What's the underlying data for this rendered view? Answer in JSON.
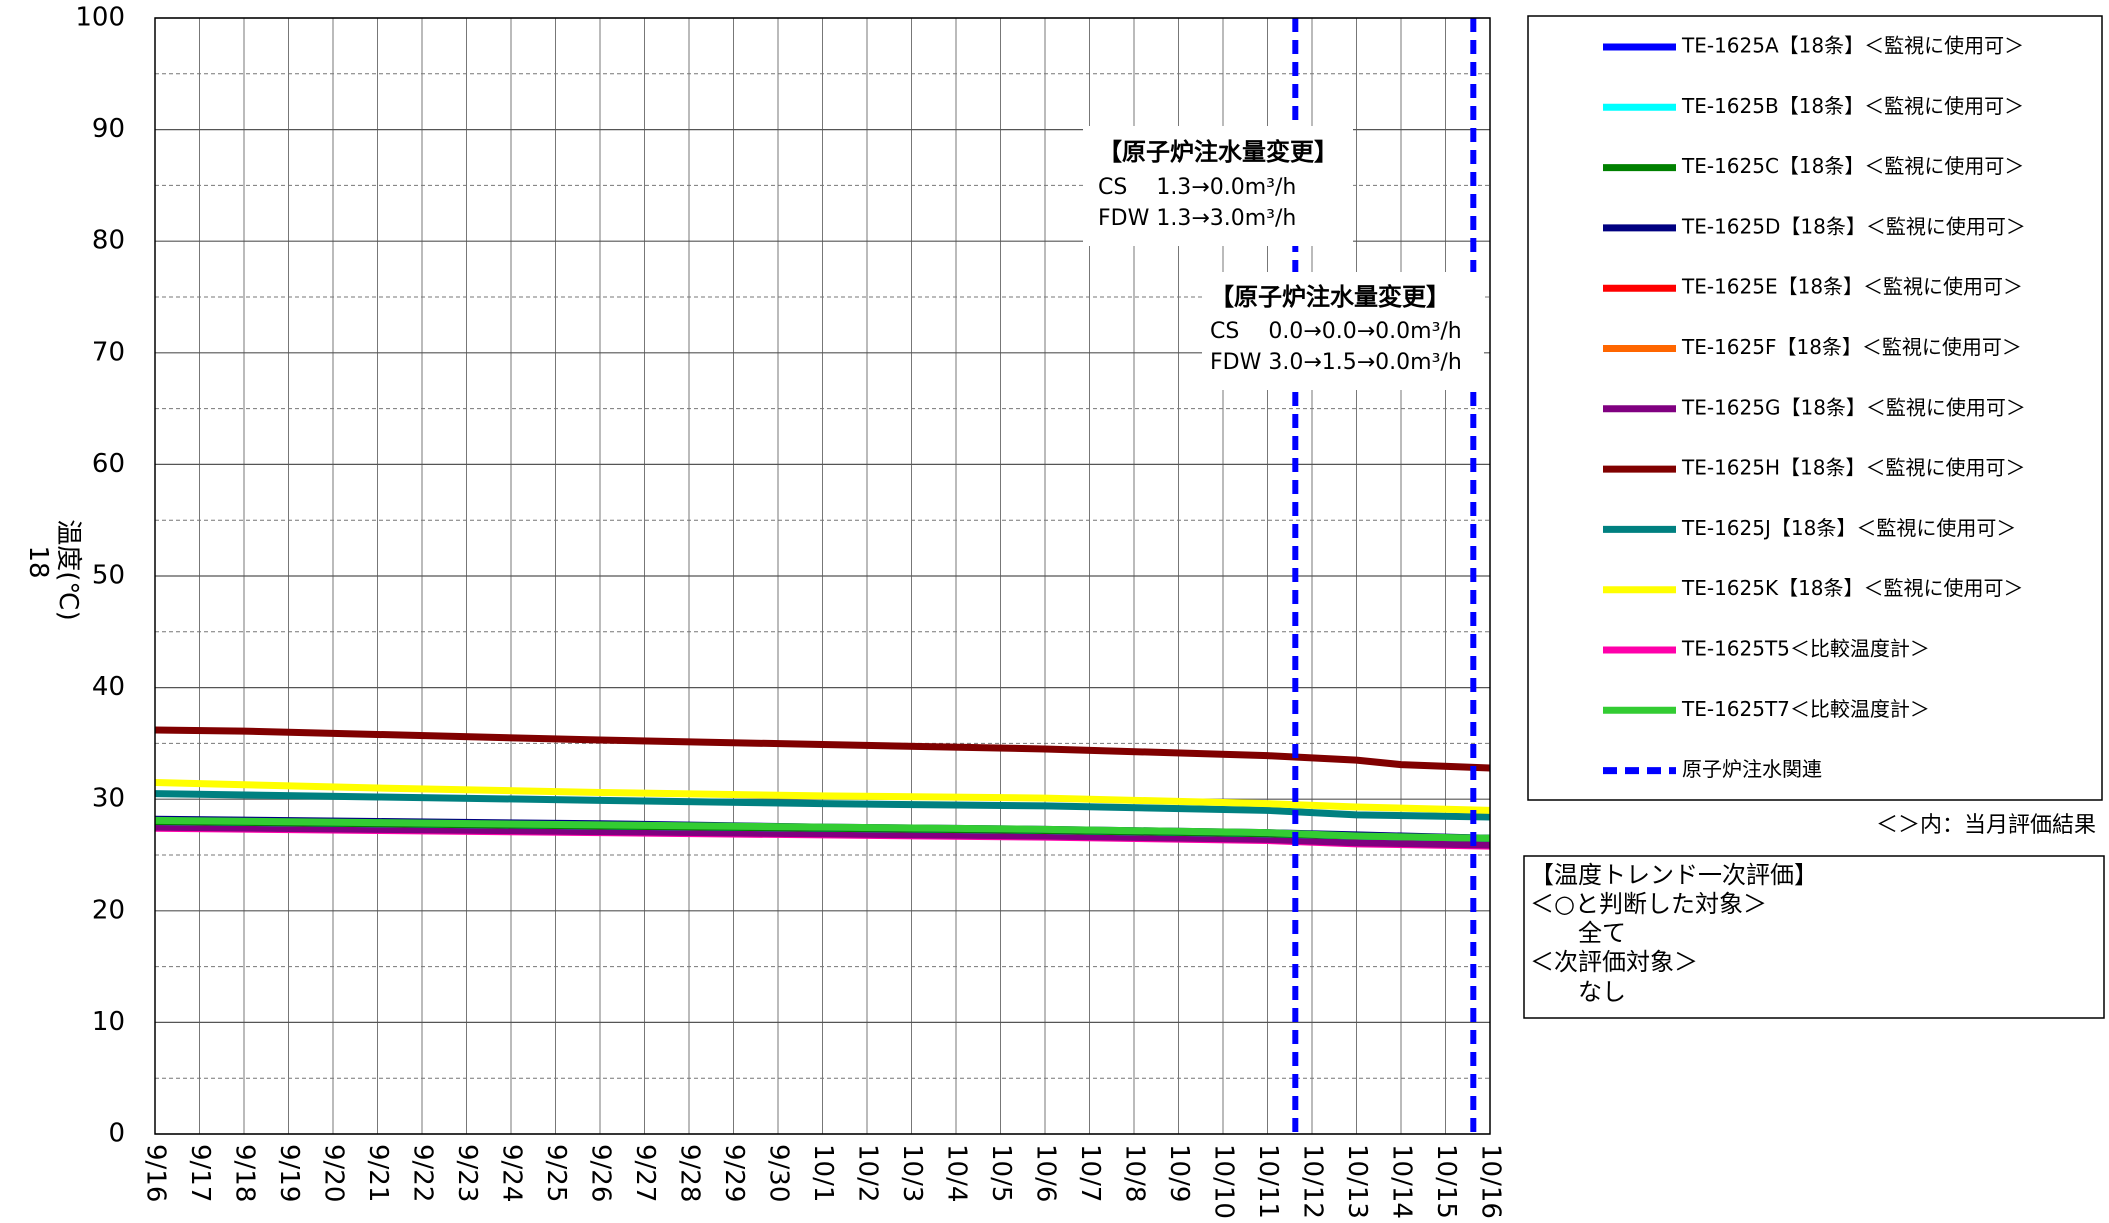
{
  "chart_data": {
    "type": "line",
    "title": "",
    "xlabel": "",
    "ylabel": "温度(℃)",
    "ylabel_prefix": "18",
    "ylim": [
      0,
      100
    ],
    "yticks": [
      0,
      10,
      20,
      30,
      40,
      50,
      60,
      70,
      80,
      90,
      100
    ],
    "x_ticks": [
      "9/16",
      "9/17",
      "9/18",
      "9/19",
      "9/20",
      "9/21",
      "9/22",
      "9/23",
      "9/24",
      "9/25",
      "9/26",
      "9/27",
      "9/28",
      "9/29",
      "9/30",
      "10/1",
      "10/2",
      "10/3",
      "10/4",
      "10/5",
      "10/6",
      "10/7",
      "10/8",
      "10/9",
      "10/10",
      "10/11",
      "10/12",
      "10/13",
      "10/14",
      "10/15",
      "10/16"
    ],
    "x_range": [
      "9/16",
      "10/16"
    ],
    "grid": true,
    "legend_position": "right",
    "series": [
      {
        "name": "TE-1625A【18条】＜監視に使用可＞",
        "color": "#0000FF",
        "x": [
          "9/16",
          "9/21",
          "9/26",
          "10/1",
          "10/6",
          "10/11",
          "10/13",
          "10/16"
        ],
        "values": [
          28.0,
          27.8,
          27.6,
          27.4,
          27.2,
          26.9,
          26.7,
          26.5
        ]
      },
      {
        "name": "TE-1625B【18条】＜監視に使用可＞",
        "color": "#00FFFF",
        "x": [
          "9/16",
          "9/21",
          "9/26",
          "10/1",
          "10/6",
          "10/11",
          "10/13",
          "10/16"
        ],
        "values": [
          28.0,
          27.8,
          27.6,
          27.4,
          27.2,
          26.9,
          26.7,
          26.5
        ]
      },
      {
        "name": "TE-1625C【18条】＜監視に使用可＞",
        "color": "#008000",
        "x": [
          "9/16",
          "9/21",
          "9/26",
          "10/1",
          "10/6",
          "10/11",
          "10/13",
          "10/16"
        ],
        "values": [
          28.0,
          27.8,
          27.6,
          27.4,
          27.2,
          26.9,
          26.7,
          26.5
        ]
      },
      {
        "name": "TE-1625D【18条】＜監視に使用可＞",
        "color": "#000080",
        "x": [
          "9/16",
          "9/21",
          "9/26",
          "10/1",
          "10/6",
          "10/11",
          "10/13",
          "10/16"
        ],
        "values": [
          28.2,
          28.0,
          27.8,
          27.5,
          27.3,
          27.0,
          26.8,
          26.5
        ]
      },
      {
        "name": "TE-1625E【18条】＜監視に使用可＞",
        "color": "#FF0000",
        "x": [
          "9/16",
          "9/21",
          "9/26",
          "10/1",
          "10/6",
          "10/11",
          "10/13",
          "10/16"
        ],
        "values": [
          27.6,
          27.4,
          27.2,
          27.0,
          26.8,
          26.5,
          26.2,
          26.0
        ]
      },
      {
        "name": "TE-1625F【18条】＜監視に使用可＞",
        "color": "#FF6600",
        "x": [
          "9/16",
          "9/21",
          "9/26",
          "10/1",
          "10/6",
          "10/11",
          "10/13",
          "10/16"
        ],
        "values": [
          27.6,
          27.4,
          27.2,
          27.0,
          26.8,
          26.5,
          26.2,
          26.0
        ]
      },
      {
        "name": "TE-1625G【18条】＜監視に使用可＞",
        "color": "#800080",
        "x": [
          "9/16",
          "9/21",
          "9/26",
          "10/1",
          "10/6",
          "10/11",
          "10/13",
          "10/16"
        ],
        "values": [
          27.5,
          27.3,
          27.1,
          26.9,
          26.7,
          26.4,
          26.1,
          25.9
        ]
      },
      {
        "name": "TE-1625H【18条】＜監視に使用可＞",
        "color": "#800000",
        "x": [
          "9/16",
          "9/18",
          "9/21",
          "9/26",
          "10/1",
          "10/6",
          "10/11",
          "10/13",
          "10/14",
          "10/16"
        ],
        "values": [
          36.2,
          36.1,
          35.8,
          35.3,
          34.9,
          34.5,
          33.9,
          33.5,
          33.1,
          32.8
        ]
      },
      {
        "name": "TE-1625J【18条】＜監視に使用可＞",
        "color": "#008080",
        "x": [
          "9/16",
          "9/21",
          "9/26",
          "10/1",
          "10/6",
          "10/11",
          "10/13",
          "10/16"
        ],
        "values": [
          30.5,
          30.2,
          29.9,
          29.6,
          29.4,
          29.0,
          28.6,
          28.4
        ]
      },
      {
        "name": "TE-1625K【18条】＜監視に使用可＞",
        "color": "#FFFF00",
        "x": [
          "9/16",
          "9/21",
          "9/26",
          "10/1",
          "10/6",
          "10/11",
          "10/13",
          "10/16"
        ],
        "values": [
          31.5,
          31.0,
          30.6,
          30.3,
          30.1,
          29.6,
          29.3,
          29.0
        ]
      },
      {
        "name": "TE-1625T5＜比較温度計＞",
        "color": "#FF00AA",
        "x": [
          "9/16",
          "9/21",
          "9/26",
          "10/1",
          "10/6",
          "10/11",
          "10/13",
          "10/16"
        ],
        "values": [
          27.4,
          27.2,
          27.0,
          26.8,
          26.6,
          26.3,
          26.0,
          25.8
        ]
      },
      {
        "name": "TE-1625T7＜比較温度計＞",
        "color": "#33CC33",
        "x": [
          "9/16",
          "9/21",
          "9/26",
          "10/1",
          "10/6",
          "10/11",
          "10/13",
          "10/16"
        ],
        "values": [
          28.1,
          27.9,
          27.7,
          27.5,
          27.3,
          27.0,
          26.7,
          26.5
        ]
      }
    ],
    "event_lines": {
      "name": "原子炉注水関連",
      "color": "#0000FF",
      "x": [
        "10/11 15:00",
        "10/15 15:00"
      ]
    },
    "annotations": [
      {
        "title": "【原子炉注水量変更】",
        "lines": [
          "CS　 1.3→0.0m³/h",
          "FDW  1.3→3.0m³/h"
        ]
      },
      {
        "title": "【原子炉注水量変更】",
        "lines": [
          "CS　 0.0→0.0→0.0m³/h",
          "FDW  3.0→1.5→0.0m³/h"
        ]
      }
    ]
  },
  "legend_note": "＜＞内：当月評価結果",
  "evaluation": {
    "title": "【温度トレンド一次評価】",
    "lines": [
      "＜○と判断した対象＞",
      "全て",
      "＜次評価対象＞",
      "なし"
    ]
  }
}
